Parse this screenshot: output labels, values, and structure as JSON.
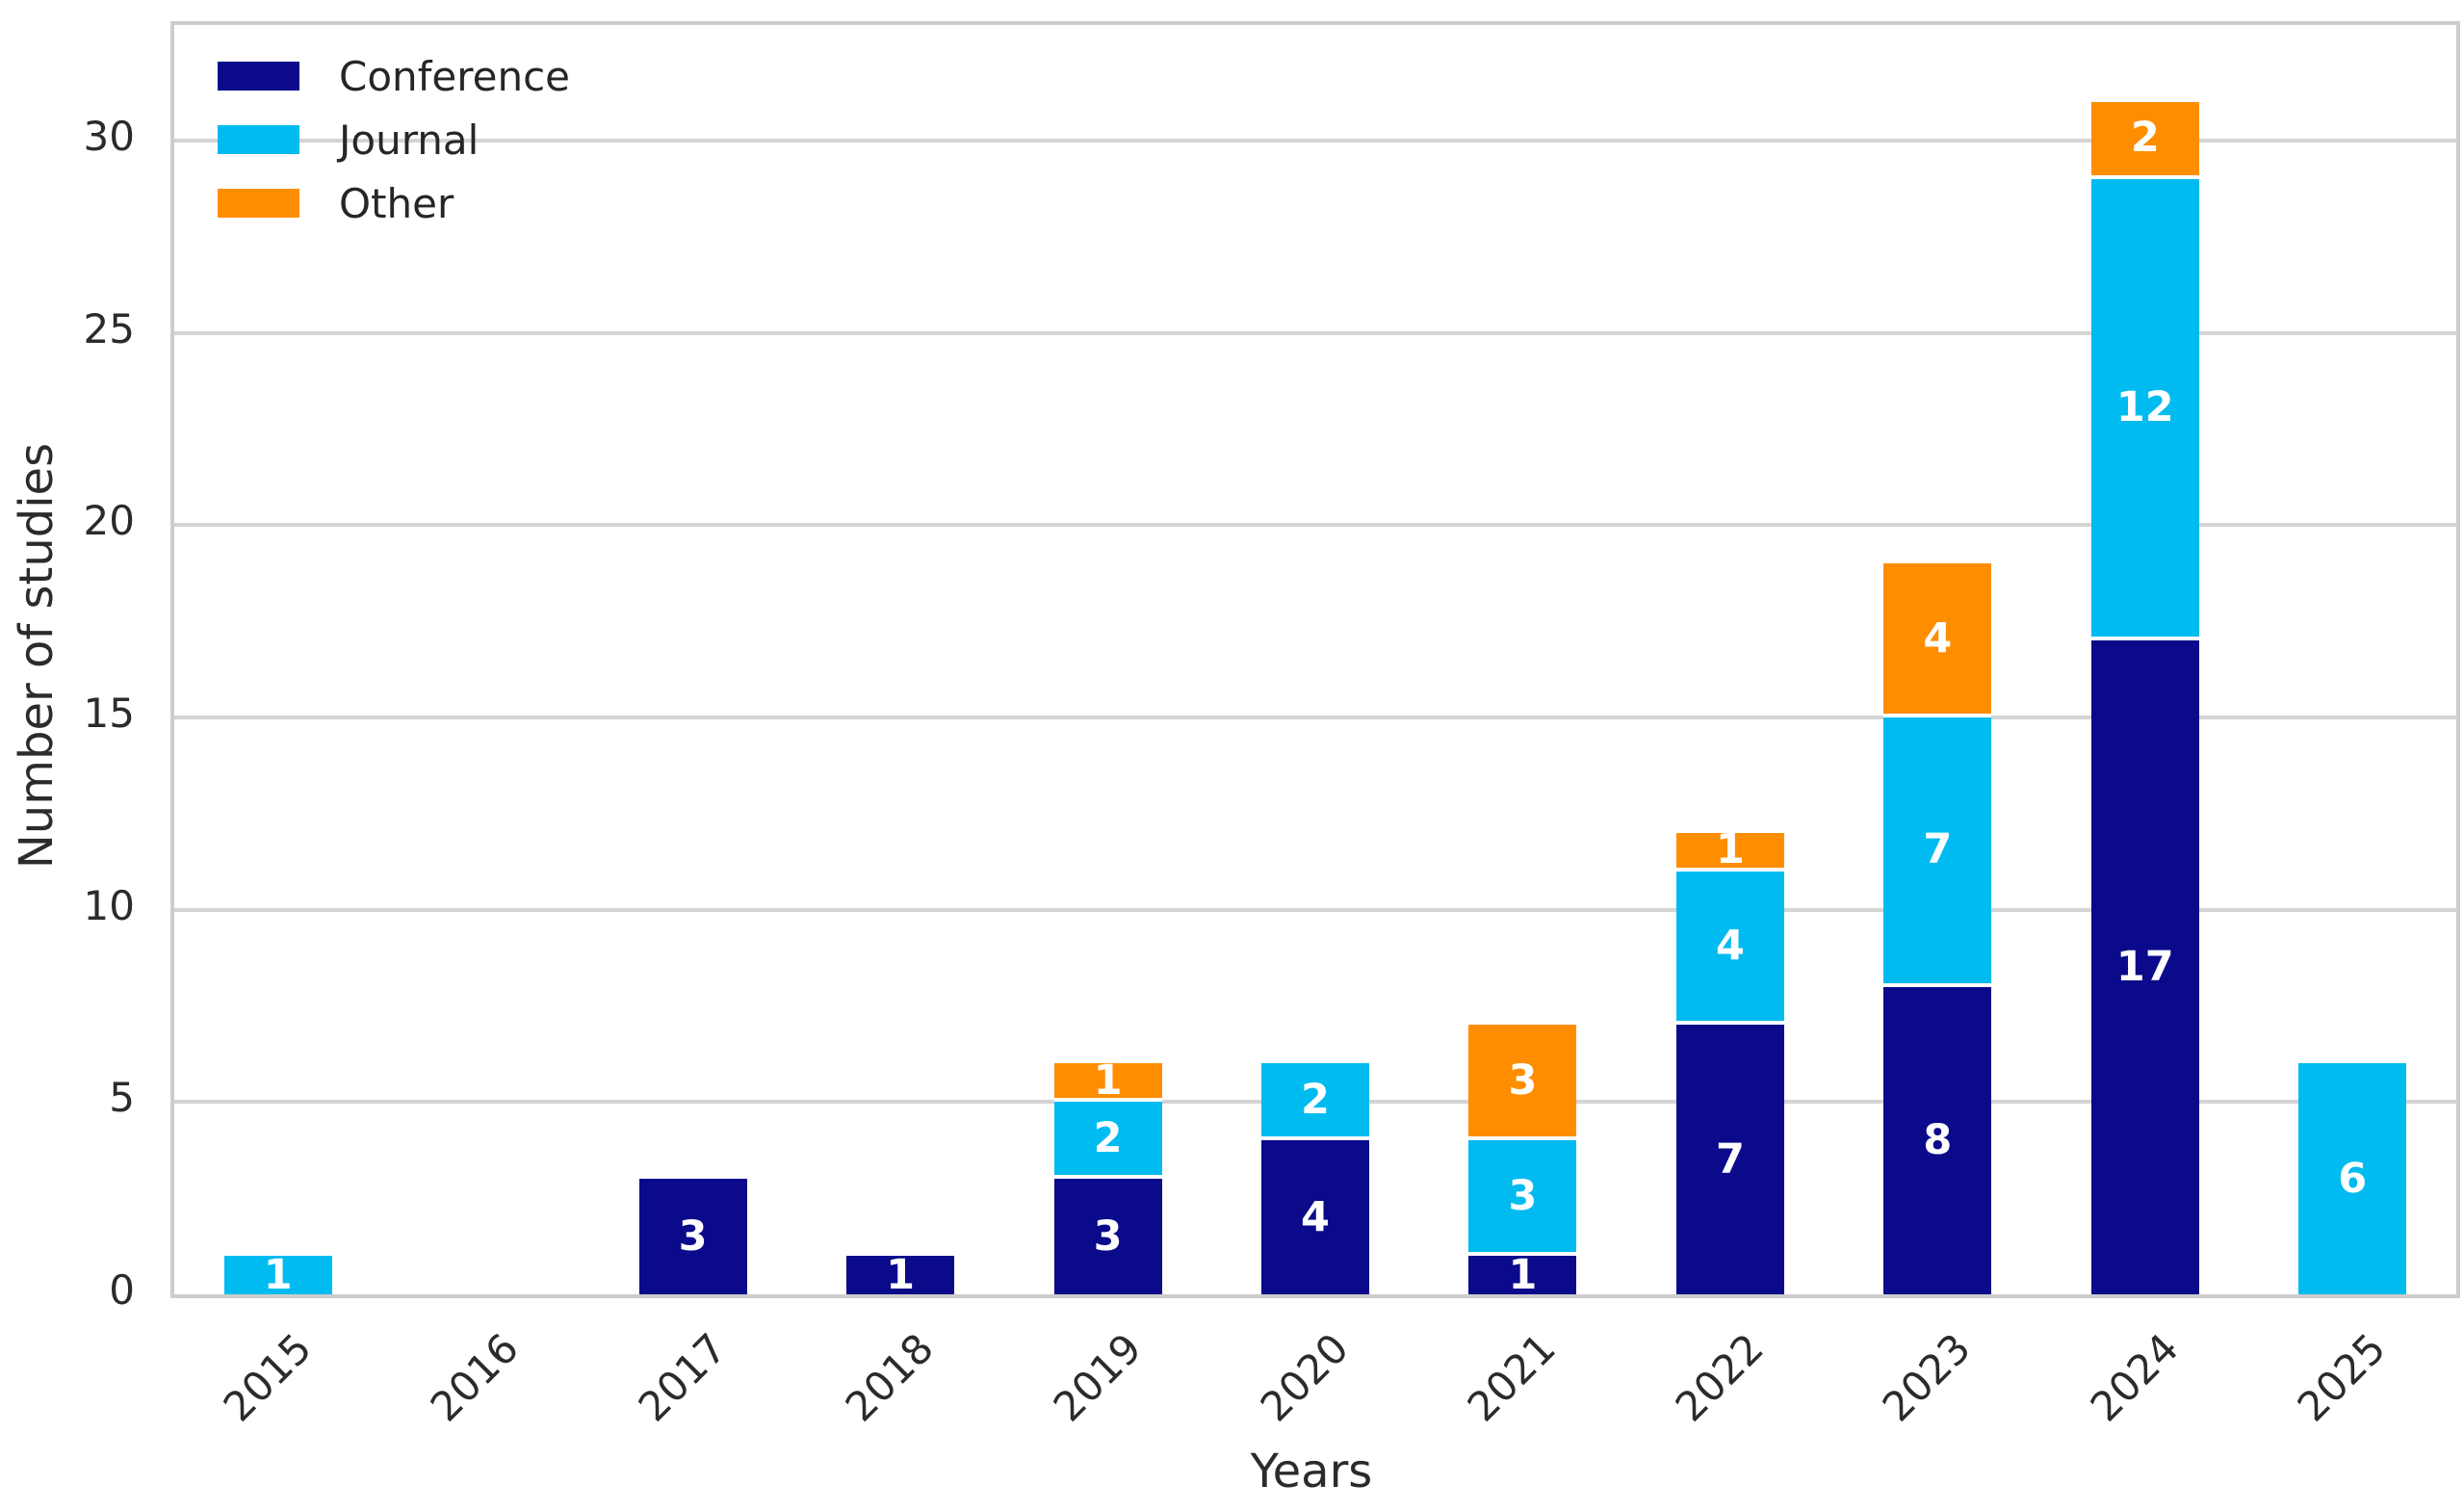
{
  "chart_data": {
    "type": "bar",
    "stacked": true,
    "title": "",
    "xlabel": "Years",
    "ylabel": "Number of studies",
    "categories": [
      "2015",
      "2016",
      "2017",
      "2018",
      "2019",
      "2020",
      "2021",
      "2022",
      "2023",
      "2024",
      "2025"
    ],
    "series": [
      {
        "name": "Conference",
        "color": "#0a0a8b",
        "values": [
          0,
          0,
          3,
          1,
          3,
          4,
          1,
          7,
          8,
          17,
          0
        ]
      },
      {
        "name": "Journal",
        "color": "#00bbf0",
        "values": [
          1,
          0,
          0,
          0,
          2,
          2,
          3,
          4,
          7,
          12,
          6
        ]
      },
      {
        "name": "Other",
        "color": "#ff8d00",
        "values": [
          0,
          0,
          0,
          0,
          1,
          0,
          3,
          1,
          4,
          2,
          0
        ]
      }
    ],
    "yticks": [
      0,
      5,
      10,
      15,
      20,
      25,
      30
    ],
    "ylim": [
      0,
      33
    ],
    "grid": "horizontal",
    "legend_position": "upper-left",
    "bar_value_labels": "white bold number centered in each nonzero segment"
  },
  "style": {
    "background": "#ffffff",
    "grid_color": "#d4d4d4",
    "spine_color": "#cdcdcd",
    "tick_text_color": "#2b2b2b",
    "bar_label_color": "#ffffff",
    "segment_separator_color": "#ffffff"
  }
}
